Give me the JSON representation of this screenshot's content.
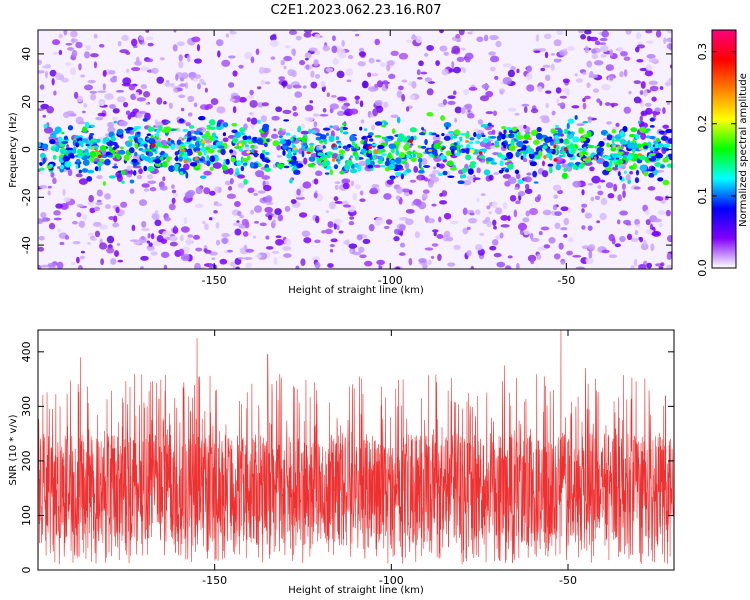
{
  "figure": {
    "title": "C2E1.2023.062.23.16.R07"
  },
  "chart_data": [
    {
      "type": "heatmap",
      "xlabel": "Height of straight line (km)",
      "ylabel": "Frequency (Hz)",
      "xlim": [
        -200,
        -20
      ],
      "ylim": [
        -50,
        50
      ],
      "xticks": [
        -150,
        -100,
        -50
      ],
      "yticks": [
        -40,
        -20,
        0,
        20,
        40
      ],
      "band_center_hz": 0,
      "band_half_width_hz": 12,
      "grid": false,
      "colorbar": {
        "label": "Normalized spectral amplitude",
        "range": [
          0.0,
          0.33
        ],
        "ticks": [
          0.0,
          0.1,
          0.2,
          0.3
        ],
        "tick_labels": [
          "0.0",
          "0.1",
          "0.2",
          "0.3"
        ],
        "colors": [
          "#ffffff",
          "#8000ff",
          "#0000ff",
          "#00ffff",
          "#00ff00",
          "#ffff00",
          "#ff8000",
          "#ff0000",
          "#ff0080"
        ]
      }
    },
    {
      "type": "line",
      "xlabel": "Height of straight line (km)",
      "ylabel": "SNR (10 * v/v)",
      "xlim": [
        -200,
        -20
      ],
      "ylim": [
        0,
        440
      ],
      "xticks": [
        -150,
        -100,
        -50
      ],
      "yticks": [
        0,
        100,
        200,
        300,
        400
      ],
      "typical_range": [
        50,
        250
      ],
      "mean": 125,
      "peak_values": [
        {
          "x": -188,
          "y": 390
        },
        {
          "x": -155,
          "y": 425
        },
        {
          "x": -135,
          "y": 395
        },
        {
          "x": -68,
          "y": 375
        },
        {
          "x": -52,
          "y": 440
        },
        {
          "x": -45,
          "y": 370
        }
      ],
      "grid": false,
      "series": [
        {
          "values_color": "#f03030"
        }
      ]
    }
  ]
}
